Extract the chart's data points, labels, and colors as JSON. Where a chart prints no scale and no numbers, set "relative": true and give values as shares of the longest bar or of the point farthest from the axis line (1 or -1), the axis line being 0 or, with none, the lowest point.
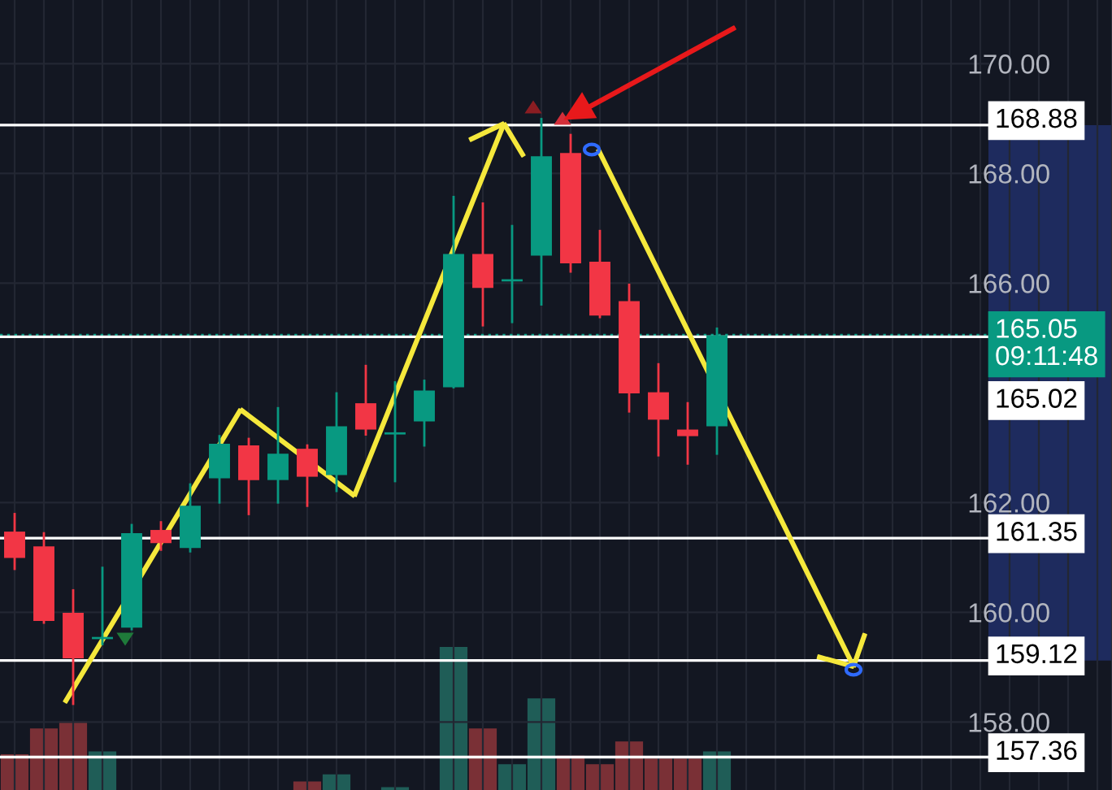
{
  "chart_data": [
    {
      "type": "candlestick",
      "categories": [
        null,
        null,
        null,
        null,
        null,
        null,
        null,
        null,
        null,
        null,
        null,
        null,
        null,
        null,
        null,
        null,
        null,
        null,
        null,
        null,
        null,
        null,
        null,
        null,
        null,
        null,
        null,
        null,
        null,
        null,
        null,
        null,
        null,
        null,
        null,
        null,
        null,
        null
      ],
      "ohlc": [
        [
          161.47,
          161.79,
          160.79,
          160.99
        ],
        [
          161.2,
          161.44,
          159.81,
          159.84
        ],
        [
          159.99,
          160.4,
          158.33,
          159.16
        ],
        [
          159.51,
          160.81,
          159.42,
          159.53
        ],
        [
          159.72,
          161.59,
          159.69,
          161.44
        ],
        [
          161.5,
          161.64,
          161.14,
          161.26
        ],
        [
          161.17,
          162.33,
          161.11,
          161.94
        ],
        [
          162.44,
          163.21,
          162.0,
          163.07
        ],
        [
          163.04,
          163.16,
          161.79,
          162.41
        ],
        [
          162.41,
          163.72,
          162.0,
          162.89
        ],
        [
          162.98,
          163.04,
          161.94,
          162.47
        ],
        [
          162.5,
          163.99,
          162.21,
          163.39
        ],
        [
          163.81,
          164.49,
          163.24,
          163.33
        ],
        [
          163.24,
          164.19,
          162.39,
          163.27
        ],
        [
          163.48,
          164.22,
          163.04,
          164.04
        ],
        [
          164.1,
          167.57,
          164.1,
          166.53
        ],
        [
          166.53,
          167.45,
          165.23,
          165.91
        ],
        [
          166.03,
          167.04,
          165.29,
          166.06
        ],
        [
          166.5,
          168.99,
          165.61,
          168.31
        ],
        [
          168.37,
          168.7,
          166.21,
          166.36
        ],
        [
          166.39,
          166.95,
          165.38,
          165.41
        ],
        [
          165.67,
          165.97,
          163.66,
          163.99
        ],
        [
          164.01,
          164.52,
          162.86,
          163.51
        ],
        [
          163.33,
          163.81,
          162.71,
          163.21
        ],
        [
          163.39,
          165.17,
          162.89,
          165.05
        ],
        null,
        null,
        null,
        null,
        null,
        null,
        null,
        null,
        null,
        null,
        null,
        null,
        null
      ],
      "colors": [
        "#f23645",
        "#f23645",
        "#f23645",
        "#089981",
        "#089981",
        "#f23645",
        "#089981",
        "#089981",
        "#f23645",
        "#089981",
        "#f23645",
        "#089981",
        "#f23645",
        "#089981",
        "#089981",
        "#089981",
        "#f23645",
        "#089981",
        "#089981",
        "#f23645",
        "#f23645",
        "#f23645",
        "#f23645",
        "#f23645",
        "#089981",
        null,
        null,
        null,
        null,
        null,
        null,
        null,
        null,
        null,
        null,
        null,
        null,
        null
      ],
      "ylim": [
        156.76,
        171.16
      ],
      "yticks": [
        {
          "value": 158,
          "label": "158.00"
        },
        {
          "value": 160,
          "label": "160.00"
        },
        {
          "value": 162,
          "label": "162.00"
        },
        {
          "value": 166,
          "label": "166.00"
        },
        {
          "value": 168,
          "label": "168.00"
        },
        {
          "value": 170,
          "label": "170.00"
        }
      ],
      "ref_lines": [
        {
          "axis": "y",
          "value": 168.88,
          "label": "168.88",
          "color": "#ffffff",
          "line_style": "solid"
        },
        {
          "axis": "y",
          "value": 165.05,
          "label": "165.05\n09:11:48",
          "color": "#089981",
          "line_style": "dotted"
        },
        {
          "axis": "y",
          "value": 165.02,
          "label": "165.02",
          "color": "#ffffff",
          "line_style": "solid"
        },
        {
          "axis": "y",
          "value": 161.35,
          "label": "161.35",
          "color": "#ffffff",
          "line_style": "solid"
        },
        {
          "axis": "y",
          "value": 159.12,
          "label": "159.12",
          "color": "#ffffff",
          "line_style": "solid"
        },
        {
          "axis": "y",
          "value": 157.36,
          "label": "157.36",
          "color": "#ffffff",
          "line_style": "solid"
        }
      ],
      "bands": [
        {
          "axis": "y",
          "from": 159.12,
          "to": 168.88,
          "color": "#1e2b5e"
        }
      ],
      "grid": true,
      "tick_labels": "y"
    },
    {
      "type": "bar",
      "categories": [
        null,
        null,
        null,
        null,
        null,
        null,
        null,
        null,
        null,
        null,
        null,
        null,
        null,
        null,
        null,
        null,
        null,
        null,
        null,
        null,
        null,
        null,
        null,
        null,
        null,
        null,
        null,
        null,
        null,
        null,
        null,
        null,
        null,
        null,
        null,
        null,
        null,
        null
      ],
      "values": [
        0.25,
        0.43,
        0.48,
        0.27,
        null,
        null,
        null,
        null,
        null,
        null,
        0.06,
        0.11,
        null,
        0.02,
        null,
        1.0,
        0.43,
        0.18,
        0.64,
        0.24,
        0.18,
        0.34,
        0.22,
        0.22,
        0.27,
        null,
        null,
        null,
        null,
        null,
        null,
        null,
        null,
        null,
        null,
        null,
        null,
        null
      ],
      "colors": [
        "#7a3036",
        "#7a3036",
        "#7a3036",
        "#1f5d57",
        "#1f5d57",
        "#7a3036",
        "#1f5d57",
        "#1f5d57",
        "#7a3036",
        "#1f5d57",
        "#7a3036",
        "#1f5d57",
        "#7a3036",
        "#1f5d57",
        "#1f5d57",
        "#1f5d57",
        "#7a3036",
        "#1f5d57",
        "#1f5d57",
        "#7a3036",
        "#7a3036",
        "#7a3036",
        "#7a3036",
        "#7a3036",
        "#1f5d57",
        null,
        null,
        null,
        null,
        null,
        null,
        null,
        null,
        null,
        null,
        null,
        null,
        null
      ],
      "relative": true,
      "tick_labels": false
    }
  ]
}
